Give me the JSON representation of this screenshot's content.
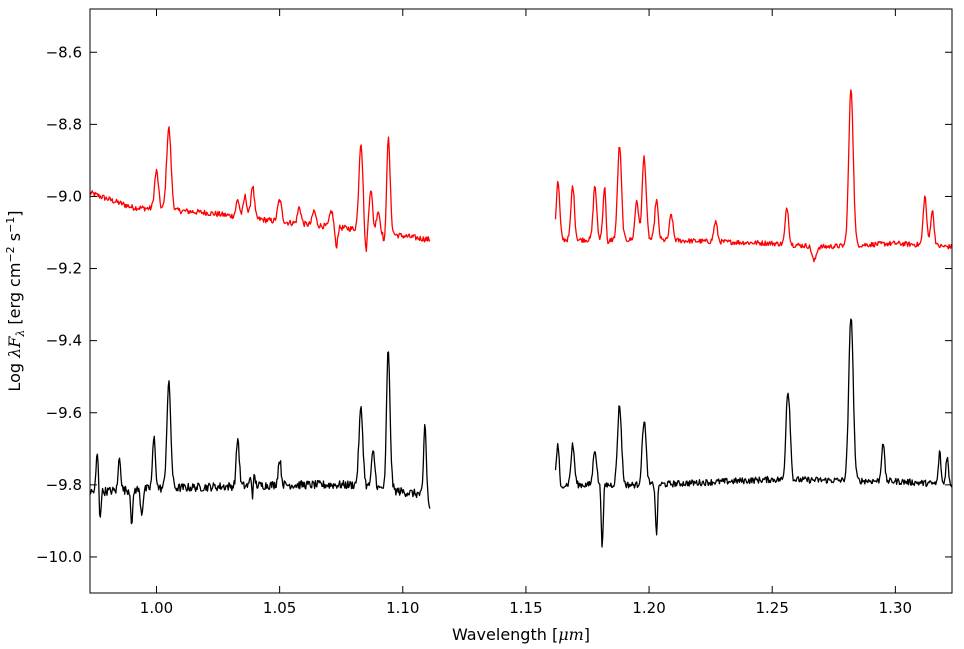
{
  "chart_data": {
    "type": "line",
    "xlabel": "Wavelength",
    "xlabel_unit": "μm",
    "ylabel_prefix": "Log",
    "ylabel_symbol": "λF",
    "ylabel_subscript": "λ",
    "ylabel_unit_open": "[erg cm",
    "ylabel_exp1": "−2",
    "ylabel_unit_mid": " s",
    "ylabel_exp2": "−1",
    "ylabel_unit_close": "]",
    "xlim": [
      0.973,
      1.323
    ],
    "ylim": [
      -10.1,
      -8.48
    ],
    "y_inverted": true,
    "grid": false,
    "x_ticks": [
      1.0,
      1.05,
      1.1,
      1.15,
      1.2,
      1.25,
      1.3
    ],
    "x_tick_labels": [
      "1.00",
      "1.05",
      "1.10",
      "1.15",
      "1.20",
      "1.25",
      "1.30"
    ],
    "y_ticks": [
      -8.6,
      -8.8,
      -9.0,
      -9.2,
      -9.4,
      -9.6,
      -9.8,
      -10.0
    ],
    "y_tick_labels": [
      "−8.6",
      "−8.8",
      "−9.0",
      "−9.2",
      "−9.4",
      "−9.6",
      "−9.8",
      "−10.0"
    ],
    "series": [
      {
        "color": "#ff0000",
        "segments": [
          {
            "x_range": [
              0.973,
              1.111
            ],
            "baseline": [
              [
                0.973,
                -8.99
              ],
              [
                0.99,
                -9.03
              ],
              [
                1.02,
                -9.045
              ],
              [
                1.05,
                -9.07
              ],
              [
                1.08,
                -9.09
              ],
              [
                1.111,
                -9.12
              ]
            ],
            "noise": 0.008,
            "lines": [
              [
                1.0,
                -8.93,
                0.0008
              ],
              [
                1.005,
                -8.81,
                0.0009
              ],
              [
                1.033,
                -9.01,
                0.0007
              ],
              [
                1.036,
                -9.0,
                0.0007
              ],
              [
                1.039,
                -8.97,
                0.0007
              ],
              [
                1.05,
                -9.01,
                0.0008
              ],
              [
                1.058,
                -9.03,
                0.0007
              ],
              [
                1.064,
                -9.04,
                0.0007
              ],
              [
                1.071,
                -9.04,
                0.0007
              ],
              [
                1.083,
                -8.85,
                0.0008
              ],
              [
                1.087,
                -8.98,
                0.0007
              ],
              [
                1.09,
                -9.04,
                0.0007
              ],
              [
                1.094,
                -8.82,
                0.0008
              ]
            ],
            "dips": [
              [
                1.093,
                -9.2,
                0.0006
              ],
              [
                1.085,
                -9.16,
                0.0005
              ],
              [
                1.073,
                -9.14,
                0.0005
              ]
            ]
          },
          {
            "x_range": [
              1.162,
              1.323
            ],
            "baseline": [
              [
                1.162,
                -9.12
              ],
              [
                1.2,
                -9.12
              ],
              [
                1.25,
                -9.13
              ],
              [
                1.27,
                -9.14
              ],
              [
                1.3,
                -9.13
              ],
              [
                1.323,
                -9.14
              ]
            ],
            "noise": 0.007,
            "lines": [
              [
                1.163,
                -8.96,
                0.0007
              ],
              [
                1.169,
                -8.97,
                0.0007
              ],
              [
                1.178,
                -8.97,
                0.0007
              ],
              [
                1.182,
                -8.97,
                0.0007
              ],
              [
                1.188,
                -8.86,
                0.0008
              ],
              [
                1.195,
                -9.01,
                0.0007
              ],
              [
                1.198,
                -8.89,
                0.0008
              ],
              [
                1.203,
                -9.01,
                0.0007
              ],
              [
                1.209,
                -9.05,
                0.0007
              ],
              [
                1.227,
                -9.07,
                0.0007
              ],
              [
                1.256,
                -9.03,
                0.0007
              ],
              [
                1.282,
                -8.7,
                0.0009
              ],
              [
                1.312,
                -9.0,
                0.0007
              ],
              [
                1.315,
                -9.04,
                0.0007
              ]
            ],
            "dips": [
              [
                1.183,
                -9.17,
                0.0005
              ],
              [
                1.267,
                -9.18,
                0.0008
              ]
            ]
          }
        ]
      },
      {
        "color": "#000000",
        "segments": [
          {
            "x_range": [
              0.973,
              1.111
            ],
            "baseline": [
              [
                0.973,
                -9.82
              ],
              [
                1.0,
                -9.81
              ],
              [
                1.05,
                -9.8
              ],
              [
                1.08,
                -9.8
              ],
              [
                1.111,
                -9.83
              ]
            ],
            "noise": 0.012,
            "lines": [
              [
                0.976,
                -9.71,
                0.0005
              ],
              [
                0.985,
                -9.72,
                0.0005
              ],
              [
                0.994,
                -9.71,
                0.0005
              ],
              [
                0.999,
                -9.67,
                0.0006
              ],
              [
                1.005,
                -9.52,
                0.0008
              ],
              [
                1.033,
                -9.67,
                0.0006
              ],
              [
                1.039,
                -9.7,
                0.0006
              ],
              [
                1.05,
                -9.73,
                0.0006
              ],
              [
                1.083,
                -9.59,
                0.0008
              ],
              [
                1.088,
                -9.71,
                0.0007
              ],
              [
                1.094,
                -9.42,
                0.0008
              ],
              [
                1.109,
                -9.63,
                0.0005
              ]
            ],
            "dips": [
              [
                0.994,
                -9.98,
                0.0005
              ],
              [
                0.977,
                -9.9,
                0.0004
              ],
              [
                0.99,
                -9.91,
                0.0004
              ],
              [
                1.039,
                -9.93,
                0.0004
              ],
              [
                1.093,
                -9.9,
                0.0005
              ],
              [
                1.111,
                -9.87,
                0.0004
              ]
            ]
          },
          {
            "x_range": [
              1.162,
              1.323
            ],
            "baseline": [
              [
                1.162,
                -9.8
              ],
              [
                1.2,
                -9.8
              ],
              [
                1.25,
                -9.785
              ],
              [
                1.3,
                -9.79
              ],
              [
                1.323,
                -9.8
              ]
            ],
            "noise": 0.009,
            "lines": [
              [
                1.163,
                -9.69,
                0.0007
              ],
              [
                1.169,
                -9.69,
                0.0007
              ],
              [
                1.178,
                -9.7,
                0.0007
              ],
              [
                1.188,
                -9.58,
                0.0008
              ],
              [
                1.198,
                -9.62,
                0.0008
              ],
              [
                1.256,
                -9.6,
                0.0006
              ],
              [
                1.257,
                -9.63,
                0.0006
              ],
              [
                1.282,
                -9.33,
                0.0009
              ],
              [
                1.295,
                -9.68,
                0.0006
              ],
              [
                1.318,
                -9.71,
                0.0005
              ],
              [
                1.321,
                -9.72,
                0.0005
              ]
            ],
            "dips": [
              [
                1.181,
                -9.97,
                0.0004
              ],
              [
                1.203,
                -9.94,
                0.0004
              ],
              [
                1.164,
                -9.84,
                0.0004
              ]
            ]
          }
        ]
      }
    ]
  }
}
